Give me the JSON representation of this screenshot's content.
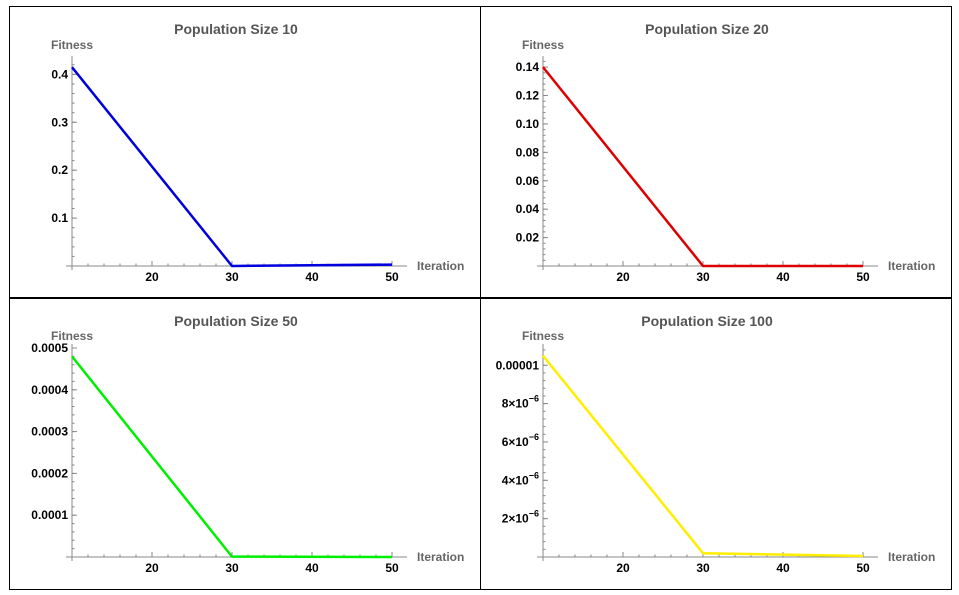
{
  "chart_data": [
    {
      "type": "line",
      "title": "Population Size 10",
      "xlabel": "Iteration",
      "ylabel": "Fitness",
      "color": "#0000dd",
      "x": [
        10,
        30,
        50
      ],
      "series": [
        {
          "values": [
            0.415,
            0.0,
            0.003
          ]
        }
      ],
      "xlim": [
        10,
        52
      ],
      "ylim": [
        0,
        0.43
      ],
      "xticks": [
        20,
        30,
        40,
        50
      ],
      "xtick_labels": [
        "20",
        "30",
        "40",
        "50"
      ],
      "yticks": [
        0.1,
        0.2,
        0.3,
        0.4
      ],
      "ytick_labels": [
        "0.1",
        "0.2",
        "0.3",
        "0.4"
      ]
    },
    {
      "type": "line",
      "title": "Population Size 20",
      "xlabel": "Iteration",
      "ylabel": "Fitness",
      "color": "#dd0000",
      "x": [
        10,
        30,
        50
      ],
      "series": [
        {
          "values": [
            0.14,
            0.0,
            0.0
          ]
        }
      ],
      "xlim": [
        10,
        52
      ],
      "ylim": [
        0,
        0.145
      ],
      "xticks": [
        20,
        30,
        40,
        50
      ],
      "xtick_labels": [
        "20",
        "30",
        "40",
        "50"
      ],
      "yticks": [
        0.02,
        0.04,
        0.06,
        0.08,
        0.1,
        0.12,
        0.14
      ],
      "ytick_labels": [
        "0.02",
        "0.04",
        "0.06",
        "0.08",
        "0.10",
        "0.12",
        "0.14"
      ]
    },
    {
      "type": "line",
      "title": "Population Size 50",
      "xlabel": "Iteration",
      "ylabel": "Fitness",
      "color": "#00ee00",
      "x": [
        10,
        30,
        50
      ],
      "series": [
        {
          "values": [
            0.00048,
            1e-06,
            0.0
          ]
        }
      ],
      "xlim": [
        10,
        52
      ],
      "ylim": [
        0,
        0.0005
      ],
      "xticks": [
        20,
        30,
        40,
        50
      ],
      "xtick_labels": [
        "20",
        "30",
        "40",
        "50"
      ],
      "yticks": [
        0.0001,
        0.0002,
        0.0003,
        0.0004,
        0.0005
      ],
      "ytick_labels": [
        "0.0001",
        "0.0002",
        "0.0003",
        "0.0004",
        "0.0005"
      ]
    },
    {
      "type": "line",
      "title": "Population Size 100",
      "xlabel": "Iteration",
      "ylabel": "Fitness",
      "color": "#ffee00",
      "x": [
        10,
        30,
        50
      ],
      "series": [
        {
          "values": [
            1.05e-05,
            2e-07,
            5e-08
          ]
        }
      ],
      "xlim": [
        10,
        52
      ],
      "ylim": [
        0,
        1.09e-05
      ],
      "xticks": [
        20,
        30,
        40,
        50
      ],
      "xtick_labels": [
        "20",
        "30",
        "40",
        "50"
      ],
      "yticks": [
        2e-06,
        4e-06,
        6e-06,
        8e-06,
        1e-05
      ],
      "ytick_labels": [
        "2×10^−6",
        "4×10^−6",
        "6×10^−6",
        "8×10^−6",
        "0.00001"
      ]
    }
  ]
}
